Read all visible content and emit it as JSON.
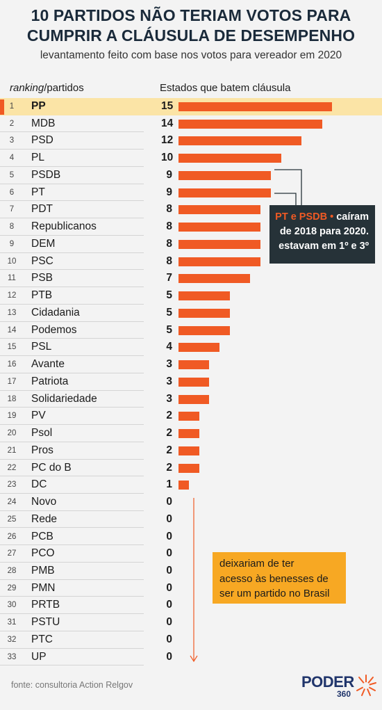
{
  "title_line1": "10 PARTIDOS NÃO TERIAM VOTOS PARA",
  "title_line2": "CUMPRIR A CLÁUSULA DE DESEMPENHO",
  "subtitle": "levantamento feito com base nos votos para vereador em 2020",
  "header_rank_italic": "ranking",
  "header_rank_rest": "/partidos",
  "header_states": "Estados que batem cláusula",
  "annotation_highlight": "PT e PSDB •",
  "annotation_rest1": " caíram",
  "annotation_line2": "de 2018 para 2020.",
  "annotation_line3": "estavam em 1º e 3º",
  "note_line1": "deixariam de ter",
  "note_line2": "acesso às benesses de",
  "note_line3": "ser um partido no Brasil",
  "source": "fonte: consultoria Action Relgov",
  "logo_text": "PODER",
  "logo_number": "360",
  "colors": {
    "bar": "#f05a24",
    "highlight": "#fbe4a6",
    "annotation_bg": "#263238",
    "note_bg": "#f7a823",
    "title": "#1a2a3a"
  },
  "chart_data": {
    "type": "bar",
    "orientation": "horizontal",
    "title": "10 PARTIDOS NÃO TERIAM VOTOS PARA CUMPRIR A CLÁUSULA DE DESEMPENHO",
    "subtitle": "levantamento feito com base nos votos para vereador em 2020",
    "xlabel": "Estados que batem cláusula",
    "ylabel": "ranking/partidos",
    "xlim": [
      0,
      15
    ],
    "highlighted": [
      "PP"
    ],
    "ranks": [
      1,
      2,
      3,
      4,
      5,
      6,
      7,
      8,
      9,
      10,
      11,
      12,
      13,
      14,
      15,
      16,
      17,
      18,
      19,
      20,
      21,
      22,
      23,
      24,
      25,
      26,
      27,
      28,
      29,
      30,
      31,
      32,
      33
    ],
    "categories": [
      "PP",
      "MDB",
      "PSD",
      "PL",
      "PSDB",
      "PT",
      "PDT",
      "Republicanos",
      "DEM",
      "PSC",
      "PSB",
      "PTB",
      "Cidadania",
      "Podemos",
      "PSL",
      "Avante",
      "Patriota",
      "Solidariedade",
      "PV",
      "Psol",
      "Pros",
      "PC do B",
      "DC",
      "Novo",
      "Rede",
      "PCB",
      "PCO",
      "PMB",
      "PMN",
      "PRTB",
      "PSTU",
      "PTC",
      "UP"
    ],
    "values": [
      15,
      14,
      12,
      10,
      9,
      9,
      8,
      8,
      8,
      8,
      7,
      5,
      5,
      5,
      4,
      3,
      3,
      3,
      2,
      2,
      2,
      2,
      1,
      0,
      0,
      0,
      0,
      0,
      0,
      0,
      0,
      0,
      0
    ]
  }
}
